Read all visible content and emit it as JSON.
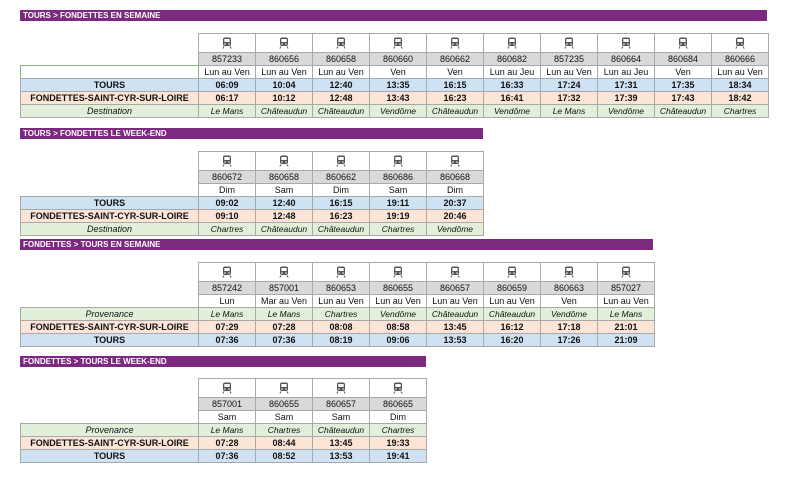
{
  "sections": [
    {
      "title": "TOURS > FONDETTES EN SEMAINE",
      "numbers": [
        "857233",
        "860656",
        "860658",
        "860660",
        "860662",
        "860682",
        "857235",
        "860664",
        "860684",
        "860666"
      ],
      "days": [
        "Lun au Ven",
        "Lun au Ven",
        "Lun au Ven",
        "Ven",
        "Ven",
        "Lun au Jeu",
        "Lun au Ven",
        "Lun au Jeu",
        "Ven",
        "Lun au Ven"
      ],
      "rows": [
        {
          "label": "TOURS",
          "cells": [
            "06:09",
            "10:04",
            "12:40",
            "13:35",
            "16:15",
            "16:33",
            "17:24",
            "17:31",
            "17:35",
            "18:34"
          ]
        },
        {
          "label": "FONDETTES-SAINT-CYR-SUR-LOIRE",
          "cells": [
            "06:17",
            "10:12",
            "12:48",
            "13:43",
            "16:23",
            "16:41",
            "17:32",
            "17:39",
            "17:43",
            "18:42"
          ]
        },
        {
          "label": "Destination",
          "cells": [
            "Le Mans",
            "Châteaudun",
            "Châteaudun",
            "Vendôme",
            "Châteaudun",
            "Vendôme",
            "Le Mans",
            "Vendôme",
            "Châteaudun",
            "Chartres"
          ]
        }
      ]
    },
    {
      "title": "TOURS > FONDETTES LE WEEK-END",
      "numbers": [
        "860672",
        "860658",
        "860662",
        "860686",
        "860668"
      ],
      "days": [
        "Dim",
        "Sam",
        "Dim",
        "Sam",
        "Dim"
      ],
      "rows": [
        {
          "label": "TOURS",
          "cells": [
            "09:02",
            "12:40",
            "16:15",
            "19:11",
            "20:37"
          ]
        },
        {
          "label": "FONDETTES-SAINT-CYR-SUR-LOIRE",
          "cells": [
            "09:10",
            "12:48",
            "16:23",
            "19:19",
            "20:46"
          ]
        },
        {
          "label": "Destination",
          "cells": [
            "Chartres",
            "Châteaudun",
            "Châteaudun",
            "Chartres",
            "Vendôme"
          ]
        }
      ]
    },
    {
      "title": "FONDETTES > TOURS EN SEMAINE",
      "numbers": [
        "857242",
        "857001",
        "860653",
        "860655",
        "860657",
        "860659",
        "860663",
        "857027"
      ],
      "days": [
        "Lun",
        "Mar au Ven",
        "Lun au Ven",
        "Lun au Ven",
        "Lun au Ven",
        "Lun au Ven",
        "Ven",
        "Lun au Ven"
      ],
      "rows": [
        {
          "label": "Provenance",
          "cells": [
            "Le Mans",
            "Le Mans",
            "Chartres",
            "Vendôme",
            "Châteaudun",
            "Châteaudun",
            "Vendôme",
            "Le Mans"
          ]
        },
        {
          "label": "FONDETTES-SAINT-CYR-SUR-LOIRE",
          "cells": [
            "07:29",
            "07:28",
            "08:08",
            "08:58",
            "13:45",
            "16:12",
            "17:18",
            "21:01"
          ]
        },
        {
          "label": "TOURS",
          "cells": [
            "07:36",
            "07:36",
            "08:19",
            "09:06",
            "13:53",
            "16:20",
            "17:26",
            "21:09"
          ]
        }
      ]
    },
    {
      "title": "FONDETTES > TOURS LE WEEK-END",
      "numbers": [
        "857001",
        "860655",
        "860657",
        "860665"
      ],
      "days": [
        "Sam",
        "Sam",
        "Sam",
        "Dim"
      ],
      "rows": [
        {
          "label": "Provenance",
          "cells": [
            "Le Mans",
            "Chartres",
            "Châteaudun",
            "Chartres"
          ]
        },
        {
          "label": "FONDETTES-SAINT-CYR-SUR-LOIRE",
          "cells": [
            "07:28",
            "08:44",
            "13:45",
            "19:33"
          ]
        },
        {
          "label": "TOURS",
          "cells": [
            "07:36",
            "08:52",
            "13:53",
            "19:41"
          ]
        }
      ]
    }
  ]
}
